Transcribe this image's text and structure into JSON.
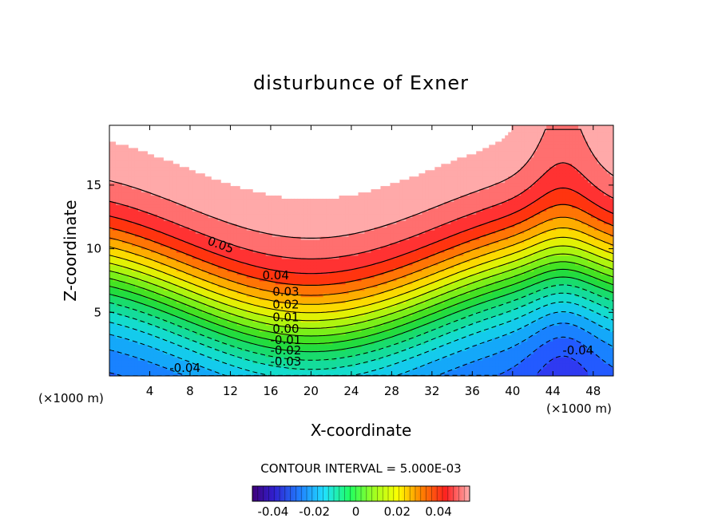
{
  "chart_data": {
    "type": "contour",
    "title": "disturbunce of Exner",
    "xlabel": "X-coordinate",
    "ylabel": "Z-coordinate",
    "x_unit": "(×1000 m)",
    "x_unit_right": "(×1000 m)",
    "xlim": [
      0,
      50
    ],
    "ylim": [
      0,
      19.7
    ],
    "x_ticks": [
      4,
      8,
      12,
      16,
      20,
      24,
      28,
      32,
      36,
      40,
      44,
      48
    ],
    "y_ticks": [
      5,
      10,
      15
    ],
    "contour_interval_label": "CONTOUR INTERVAL = 5.000E-03",
    "contour_interval": 0.005,
    "negative_contours_dashed": true,
    "contour_labels": [
      {
        "text": "0.05",
        "x": 10.9,
        "y": 10.0,
        "rotate": 20
      },
      {
        "text": "0.04",
        "x": 16.5,
        "y": 7.6
      },
      {
        "text": "0.03",
        "x": 17.5,
        "y": 6.3
      },
      {
        "text": "0.02",
        "x": 17.5,
        "y": 5.3
      },
      {
        "text": "0.01",
        "x": 17.5,
        "y": 4.3
      },
      {
        "text": "0.00",
        "x": 17.5,
        "y": 3.4
      },
      {
        "text": "-0.01",
        "x": 17.5,
        "y": 2.5
      },
      {
        "text": "-0.02",
        "x": 17.5,
        "y": 1.7
      },
      {
        "text": "-0.03",
        "x": 17.5,
        "y": 0.8
      },
      {
        "text": "-0.04",
        "x": 7.5,
        "y": 0.3
      },
      {
        "text": "-0.04",
        "x": 46.5,
        "y": 1.7
      }
    ],
    "colorbar": {
      "min": -0.05,
      "max": 0.055,
      "tick_labels": [
        "-0.04",
        "-0.02",
        "0",
        "0.02",
        "0.04"
      ],
      "tick_values": [
        -0.04,
        -0.02,
        0,
        0.02,
        0.04
      ]
    },
    "colors": {
      "low": "#40007a",
      "mid": "#00ff40",
      "high": "#ff0000",
      "saturated": "#ffffff"
    }
  }
}
